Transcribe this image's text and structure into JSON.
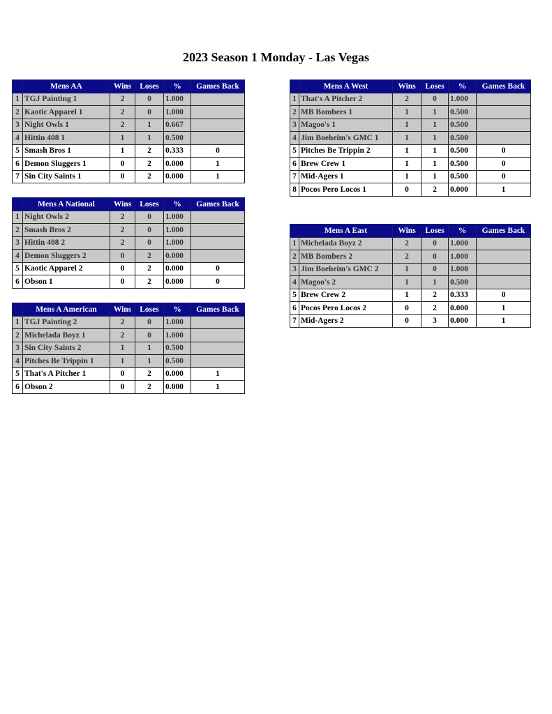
{
  "title": "2023 Season 1 Monday - Las Vegas",
  "columns": {
    "wins": "Wins",
    "loses": "Loses",
    "pct": "%",
    "games_back": "Games Back"
  },
  "colors": {
    "header_bg": "#0a0a8a",
    "header_text": "#ffffff",
    "top_rows_bg": "#c9c9c9",
    "other_rows_bg": "#ffffff"
  },
  "divisions": [
    {
      "id": "mens-aa",
      "name": "Mens AA",
      "rows": [
        {
          "rank": "1",
          "team": "TGJ Painting 1",
          "wins": "2",
          "loses": "0",
          "pct": "1.000",
          "gb": ""
        },
        {
          "rank": "2",
          "team": "Kaotic Apparel 1",
          "wins": "2",
          "loses": "0",
          "pct": "1.000",
          "gb": ""
        },
        {
          "rank": "3",
          "team": "Night Owls 1",
          "wins": "2",
          "loses": "1",
          "pct": "0.667",
          "gb": ""
        },
        {
          "rank": "4",
          "team": "Hittin 408 1",
          "wins": "1",
          "loses": "1",
          "pct": "0.500",
          "gb": ""
        },
        {
          "rank": "5",
          "team": "Smash Bros 1",
          "wins": "1",
          "loses": "2",
          "pct": "0.333",
          "gb": "0"
        },
        {
          "rank": "6",
          "team": "Demon Sluggers 1",
          "wins": "0",
          "loses": "2",
          "pct": "0.000",
          "gb": "1"
        },
        {
          "rank": "7",
          "team": "Sin City Saints 1",
          "wins": "0",
          "loses": "2",
          "pct": "0.000",
          "gb": "1"
        }
      ]
    },
    {
      "id": "mens-a-national",
      "name": "Mens A National",
      "rows": [
        {
          "rank": "1",
          "team": "Night Owls 2",
          "wins": "2",
          "loses": "0",
          "pct": "1.000",
          "gb": ""
        },
        {
          "rank": "2",
          "team": "Smash Bros 2",
          "wins": "2",
          "loses": "0",
          "pct": "1.000",
          "gb": ""
        },
        {
          "rank": "3",
          "team": "Hittin 408 2",
          "wins": "2",
          "loses": "0",
          "pct": "1.000",
          "gb": ""
        },
        {
          "rank": "4",
          "team": "Demon Sluggers 2",
          "wins": "0",
          "loses": "2",
          "pct": "0.000",
          "gb": ""
        },
        {
          "rank": "5",
          "team": "Kaotic Apparel 2",
          "wins": "0",
          "loses": "2",
          "pct": "0.000",
          "gb": "0"
        },
        {
          "rank": "6",
          "team": "Obson 1",
          "wins": "0",
          "loses": "2",
          "pct": "0.000",
          "gb": "0"
        }
      ]
    },
    {
      "id": "mens-a-american",
      "name": "Mens A American",
      "rows": [
        {
          "rank": "1",
          "team": "TGJ Painting 2",
          "wins": "2",
          "loses": "0",
          "pct": "1.000",
          "gb": ""
        },
        {
          "rank": "2",
          "team": "Michelada Boyz 1",
          "wins": "2",
          "loses": "0",
          "pct": "1.000",
          "gb": ""
        },
        {
          "rank": "3",
          "team": "Sin City Saints 2",
          "wins": "1",
          "loses": "1",
          "pct": "0.500",
          "gb": ""
        },
        {
          "rank": "4",
          "team": "Pitches Be Trippin 1",
          "wins": "1",
          "loses": "1",
          "pct": "0.500",
          "gb": ""
        },
        {
          "rank": "5",
          "team": "That's A Pitcher 1",
          "wins": "0",
          "loses": "2",
          "pct": "0.000",
          "gb": "1"
        },
        {
          "rank": "6",
          "team": "Obson 2",
          "wins": "0",
          "loses": "2",
          "pct": "0.000",
          "gb": "1"
        }
      ]
    },
    {
      "id": "mens-a-west",
      "name": "Mens A West",
      "rows": [
        {
          "rank": "1",
          "team": "That's A Pitcher 2",
          "wins": "2",
          "loses": "0",
          "pct": "1.000",
          "gb": ""
        },
        {
          "rank": "2",
          "team": "MB Bombers 1",
          "wins": "1",
          "loses": "1",
          "pct": "0.500",
          "gb": ""
        },
        {
          "rank": "3",
          "team": "Magoo's 1",
          "wins": "1",
          "loses": "1",
          "pct": "0.500",
          "gb": ""
        },
        {
          "rank": "4",
          "team": "Jim Boeheim's GMC 1",
          "wins": "1",
          "loses": "1",
          "pct": "0.500",
          "gb": ""
        },
        {
          "rank": "5",
          "team": "Pitches Be Trippin 2",
          "wins": "1",
          "loses": "1",
          "pct": "0.500",
          "gb": "0"
        },
        {
          "rank": "6",
          "team": "Brew Crew 1",
          "wins": "1",
          "loses": "1",
          "pct": "0.500",
          "gb": "0"
        },
        {
          "rank": "7",
          "team": "Mid-Agers 1",
          "wins": "1",
          "loses": "1",
          "pct": "0.500",
          "gb": "0"
        },
        {
          "rank": "8",
          "team": "Pocos Pero Locos 1",
          "wins": "0",
          "loses": "2",
          "pct": "0.000",
          "gb": "1"
        }
      ]
    },
    {
      "id": "mens-a-east",
      "name": "Mens A East",
      "rows": [
        {
          "rank": "1",
          "team": "Michelada Boyz 2",
          "wins": "2",
          "loses": "0",
          "pct": "1.000",
          "gb": ""
        },
        {
          "rank": "2",
          "team": "MB Bombers 2",
          "wins": "2",
          "loses": "0",
          "pct": "1.000",
          "gb": ""
        },
        {
          "rank": "3",
          "team": "Jim Boeheim's GMC 2",
          "wins": "1",
          "loses": "0",
          "pct": "1.000",
          "gb": ""
        },
        {
          "rank": "4",
          "team": "Magoo's 2",
          "wins": "1",
          "loses": "1",
          "pct": "0.500",
          "gb": ""
        },
        {
          "rank": "5",
          "team": "Brew Crew 2",
          "wins": "1",
          "loses": "2",
          "pct": "0.333",
          "gb": "0"
        },
        {
          "rank": "6",
          "team": "Pocos Pero Locos 2",
          "wins": "0",
          "loses": "2",
          "pct": "0.000",
          "gb": "1"
        },
        {
          "rank": "7",
          "team": "Mid-Agers 2",
          "wins": "0",
          "loses": "3",
          "pct": "0.000",
          "gb": "1"
        }
      ]
    }
  ]
}
